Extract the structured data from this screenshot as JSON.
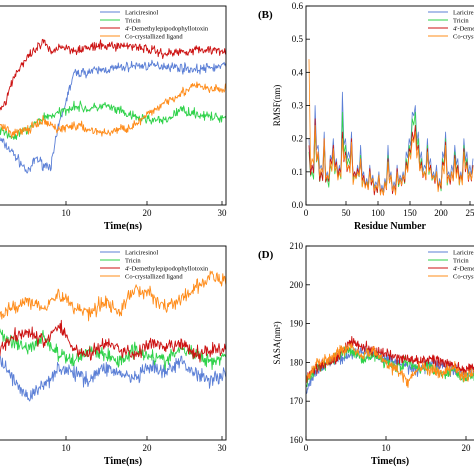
{
  "colors": {
    "lariciresinol": "#5b7fd6",
    "tricin": "#2fd24a",
    "demethyl": "#cc1111",
    "ligand": "#ff8c1a"
  },
  "chart_data": [
    {
      "panel": "A",
      "type": "line",
      "letter": "",
      "xlabel": "Time(ns)",
      "ylabel": "",
      "xlim": [
        0,
        30
      ],
      "xticks": [
        "10",
        "20",
        "30"
      ],
      "yticks": [],
      "legend": [
        "Lariciresinol",
        "Tricin",
        "4'-Demethylepipodophyllotoxin",
        "Co-crystallized ligand"
      ],
      "legend_position": "top-right",
      "series": [
        {
          "name": "Lariciresinol",
          "x": [
            0,
            2,
            4,
            5,
            6,
            7,
            8,
            10,
            14,
            18,
            22,
            26,
            30
          ],
          "y": [
            0.22,
            0.18,
            0.13,
            0.17,
            0.15,
            0.15,
            0.25,
            0.38,
            0.39,
            0.4,
            0.4,
            0.39,
            0.4
          ]
        },
        {
          "name": "Tricin",
          "x": [
            0,
            2,
            4,
            6,
            8,
            10,
            12,
            14,
            18,
            22,
            24,
            26,
            28,
            30
          ],
          "y": [
            0.24,
            0.22,
            0.24,
            0.27,
            0.28,
            0.3,
            0.29,
            0.3,
            0.27,
            0.26,
            0.29,
            0.28,
            0.27,
            0.27
          ]
        },
        {
          "name": "4'-Demethylepipodophyllotoxin",
          "x": [
            0,
            1,
            2,
            3,
            4,
            5,
            6,
            7,
            8,
            10,
            14,
            18,
            22,
            26,
            30
          ],
          "y": [
            0.28,
            0.31,
            0.37,
            0.4,
            0.42,
            0.44,
            0.46,
            0.43,
            0.45,
            0.44,
            0.45,
            0.45,
            0.43,
            0.44,
            0.44
          ]
        },
        {
          "name": "Co-crystallized ligand",
          "x": [
            0,
            2,
            4,
            6,
            8,
            10,
            12,
            14,
            16,
            18,
            20,
            22,
            24,
            26,
            28,
            30
          ],
          "y": [
            0.25,
            0.23,
            0.24,
            0.26,
            0.24,
            0.25,
            0.24,
            0.23,
            0.24,
            0.25,
            0.28,
            0.31,
            0.33,
            0.35,
            0.34,
            0.34
          ]
        }
      ]
    },
    {
      "panel": "B",
      "type": "line",
      "letter": "(B)",
      "xlabel": "Residue Number",
      "ylabel": "RMSF(nm)",
      "xlim": [
        0,
        280
      ],
      "ylim": [
        0,
        0.6
      ],
      "xticks": [
        "0",
        "50",
        "100",
        "150",
        "200",
        "25"
      ],
      "yticks": [
        "0.0",
        "0.1",
        "0.2",
        "0.3",
        "0.4",
        "0.5",
        "0.6"
      ],
      "legend": [
        "Lariciresinol",
        "Tricin",
        "4'-Demet",
        "Co-cryst"
      ],
      "legend_position": "top-right",
      "series": [
        {
          "name": "Lariciresinol",
          "x": [
            5,
            10,
            15,
            20,
            25,
            30,
            35,
            40,
            45,
            50,
            55,
            60,
            65,
            70,
            75,
            80,
            85,
            90,
            95,
            100,
            105,
            110,
            115,
            120,
            125,
            130,
            135,
            140,
            145,
            150,
            155,
            160,
            165,
            170,
            175,
            180,
            185,
            190,
            195,
            200,
            205,
            210,
            215,
            220,
            225,
            230,
            235,
            240,
            245,
            250,
            255,
            260,
            265,
            270,
            275
          ],
          "y": [
            0.2,
            0.12,
            0.3,
            0.18,
            0.12,
            0.22,
            0.1,
            0.15,
            0.2,
            0.14,
            0.12,
            0.34,
            0.2,
            0.16,
            0.22,
            0.1,
            0.12,
            0.18,
            0.1,
            0.08,
            0.12,
            0.09,
            0.07,
            0.1,
            0.06,
            0.08,
            0.18,
            0.1,
            0.07,
            0.12,
            0.09,
            0.1,
            0.16,
            0.2,
            0.28,
            0.3,
            0.22,
            0.16,
            0.12,
            0.2,
            0.14,
            0.1,
            0.12,
            0.08,
            0.16,
            0.22,
            0.1,
            0.12,
            0.18,
            0.14,
            0.1,
            0.2,
            0.16,
            0.12,
            0.14
          ]
        },
        {
          "name": "Tricin",
          "x": [
            5,
            10,
            15,
            20,
            25,
            30,
            35,
            40,
            45,
            50,
            55,
            60,
            65,
            70,
            75,
            80,
            85,
            90,
            95,
            100,
            105,
            110,
            115,
            120,
            125,
            130,
            135,
            140,
            145,
            150,
            155,
            160,
            165,
            170,
            175,
            180,
            185,
            190,
            195,
            200,
            205,
            210,
            215,
            220,
            225,
            230,
            235,
            240,
            245,
            250,
            255,
            260,
            265,
            270,
            275
          ],
          "y": [
            0.16,
            0.1,
            0.22,
            0.15,
            0.1,
            0.18,
            0.08,
            0.12,
            0.16,
            0.12,
            0.1,
            0.28,
            0.18,
            0.14,
            0.18,
            0.09,
            0.1,
            0.15,
            0.08,
            0.07,
            0.1,
            0.08,
            0.06,
            0.09,
            0.05,
            0.07,
            0.15,
            0.09,
            0.06,
            0.1,
            0.08,
            0.09,
            0.14,
            0.18,
            0.26,
            0.28,
            0.2,
            0.14,
            0.1,
            0.18,
            0.12,
            0.09,
            0.1,
            0.07,
            0.14,
            0.2,
            0.09,
            0.1,
            0.16,
            0.12,
            0.09,
            0.18,
            0.14,
            0.1,
            0.12
          ]
        },
        {
          "name": "4'-Demet",
          "x": [
            5,
            10,
            15,
            20,
            25,
            30,
            35,
            40,
            45,
            50,
            55,
            60,
            65,
            70,
            75,
            80,
            85,
            90,
            95,
            100,
            105,
            110,
            115,
            120,
            125,
            130,
            135,
            140,
            145,
            150,
            155,
            160,
            165,
            170,
            175,
            180,
            185,
            190,
            195,
            200,
            205,
            210,
            215,
            220,
            225,
            230,
            235,
            240,
            245,
            250,
            255,
            260,
            265,
            270,
            275
          ],
          "y": [
            0.18,
            0.12,
            0.26,
            0.16,
            0.1,
            0.2,
            0.09,
            0.14,
            0.18,
            0.13,
            0.11,
            0.22,
            0.16,
            0.12,
            0.2,
            0.1,
            0.11,
            0.14,
            0.09,
            0.07,
            0.11,
            0.08,
            0.06,
            0.09,
            0.05,
            0.07,
            0.14,
            0.09,
            0.06,
            0.11,
            0.08,
            0.09,
            0.13,
            0.17,
            0.22,
            0.24,
            0.18,
            0.13,
            0.1,
            0.17,
            0.12,
            0.09,
            0.1,
            0.07,
            0.13,
            0.19,
            0.09,
            0.1,
            0.15,
            0.12,
            0.09,
            0.17,
            0.13,
            0.1,
            0.12
          ]
        },
        {
          "name": "Co-cryst",
          "x": [
            5,
            10,
            15,
            20,
            25,
            30,
            35,
            40,
            45,
            50,
            55,
            60,
            65,
            70,
            75,
            80,
            85,
            90,
            95,
            100,
            105,
            110,
            115,
            120,
            125,
            130,
            135,
            140,
            145,
            150,
            155,
            160,
            165,
            170,
            175,
            180,
            185,
            190,
            195,
            200,
            205,
            210,
            215,
            220,
            225,
            230,
            235,
            240,
            245,
            250,
            255,
            260,
            265,
            270,
            275
          ],
          "y": [
            0.44,
            0.14,
            0.24,
            0.16,
            0.11,
            0.2,
            0.09,
            0.13,
            0.17,
            0.12,
            0.1,
            0.2,
            0.15,
            0.12,
            0.19,
            0.09,
            0.1,
            0.14,
            0.08,
            0.07,
            0.1,
            0.08,
            0.06,
            0.09,
            0.05,
            0.07,
            0.13,
            0.09,
            0.06,
            0.1,
            0.08,
            0.09,
            0.12,
            0.16,
            0.2,
            0.22,
            0.17,
            0.12,
            0.1,
            0.16,
            0.11,
            0.09,
            0.1,
            0.07,
            0.12,
            0.18,
            0.09,
            0.1,
            0.14,
            0.11,
            0.09,
            0.16,
            0.12,
            0.1,
            0.11
          ]
        }
      ]
    },
    {
      "panel": "C",
      "type": "line",
      "letter": "",
      "xlabel": "Time(ns)",
      "ylabel": "",
      "xlim": [
        0,
        30
      ],
      "xticks": [
        "10",
        "20",
        "30"
      ],
      "yticks": [],
      "legend": [
        "Lariciresinol",
        "Tricin",
        "4'-Demethylepipodophyllotoxin",
        "Co-crystallized ligand"
      ],
      "legend_position": "top-right",
      "series": [
        {
          "name": "Lariciresinol",
          "x": [
            0,
            2,
            4,
            6,
            8,
            10,
            12,
            14,
            16,
            18,
            20,
            22,
            24,
            26,
            28,
            30
          ],
          "y": [
            0.44,
            0.4,
            0.37,
            0.39,
            0.42,
            0.41,
            0.4,
            0.42,
            0.41,
            0.4,
            0.42,
            0.41,
            0.43,
            0.41,
            0.4,
            0.41
          ]
        },
        {
          "name": "Tricin",
          "x": [
            0,
            2,
            4,
            6,
            8,
            10,
            12,
            14,
            16,
            18,
            20,
            22,
            24,
            26,
            28,
            30
          ],
          "y": [
            0.48,
            0.46,
            0.45,
            0.47,
            0.44,
            0.43,
            0.45,
            0.44,
            0.43,
            0.45,
            0.44,
            0.43,
            0.45,
            0.44,
            0.43,
            0.44
          ]
        },
        {
          "name": "4'-Demethylepipodophyllotoxin",
          "x": [
            0,
            2,
            4,
            6,
            8,
            10,
            12,
            14,
            16,
            18,
            20,
            22,
            24,
            26,
            28,
            30
          ],
          "y": [
            0.45,
            0.47,
            0.48,
            0.46,
            0.49,
            0.45,
            0.44,
            0.46,
            0.45,
            0.44,
            0.46,
            0.45,
            0.46,
            0.44,
            0.45,
            0.45
          ]
        },
        {
          "name": "Co-crystallized ligand",
          "x": [
            0,
            2,
            4,
            6,
            8,
            10,
            12,
            14,
            16,
            18,
            20,
            22,
            24,
            26,
            28,
            30
          ],
          "y": [
            0.5,
            0.52,
            0.53,
            0.52,
            0.54,
            0.52,
            0.51,
            0.53,
            0.51,
            0.55,
            0.54,
            0.52,
            0.53,
            0.55,
            0.57,
            0.56
          ]
        }
      ]
    },
    {
      "panel": "D",
      "type": "line",
      "letter": "(D)",
      "xlabel": "Time(ns)",
      "ylabel": "SASA(nm²)",
      "xlim": [
        0,
        30
      ],
      "ylim": [
        160,
        210
      ],
      "xticks": [
        "0",
        "10",
        "20"
      ],
      "yticks": [
        "160",
        "170",
        "180",
        "190",
        "200",
        "210"
      ],
      "legend": [
        "Laricires",
        "Tricin",
        "4'-Demet",
        "Co-cryst"
      ],
      "legend_position": "top-right",
      "series": [
        {
          "name": "Laricires",
          "x": [
            0,
            1,
            2,
            4,
            6,
            8,
            10,
            12,
            14,
            16,
            18,
            20,
            22,
            24,
            26,
            28,
            30
          ],
          "y": [
            172,
            176,
            178,
            180,
            181,
            182,
            183,
            182,
            181,
            180,
            179,
            178,
            180,
            179,
            178,
            177,
            178
          ]
        },
        {
          "name": "Tricin",
          "x": [
            0,
            1,
            2,
            4,
            6,
            8,
            10,
            12,
            14,
            16,
            18,
            20,
            22,
            24,
            26,
            28,
            30
          ],
          "y": [
            174,
            177,
            179,
            180,
            182,
            183,
            181,
            182,
            180,
            179,
            180,
            178,
            179,
            177,
            178,
            176,
            177
          ]
        },
        {
          "name": "4'-Demet",
          "x": [
            0,
            1,
            2,
            4,
            6,
            8,
            10,
            12,
            14,
            16,
            18,
            20,
            22,
            24,
            26,
            28,
            30
          ],
          "y": [
            175,
            178,
            179,
            180,
            182,
            186,
            184,
            183,
            182,
            181,
            181,
            180,
            181,
            180,
            179,
            178,
            179
          ]
        },
        {
          "name": "Co-cryst",
          "x": [
            0,
            1,
            2,
            4,
            6,
            8,
            10,
            12,
            14,
            16,
            18,
            20,
            22,
            24,
            26,
            28,
            30
          ],
          "y": [
            176,
            178,
            180,
            181,
            183,
            184,
            182,
            183,
            180,
            178,
            175,
            179,
            178,
            177,
            179,
            176,
            178
          ]
        }
      ]
    }
  ]
}
